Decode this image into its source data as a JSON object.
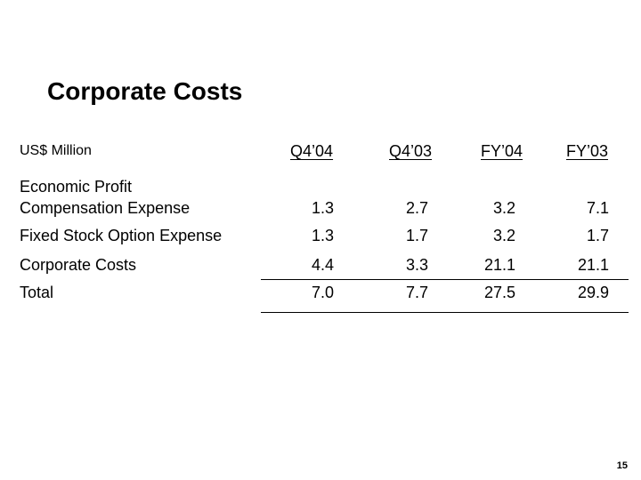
{
  "title": "Corporate Costs",
  "unit_label": "US$ Million",
  "columns": [
    "Q4’04",
    "Q4’03",
    "FY’04",
    "FY’03"
  ],
  "rows": [
    {
      "label_line1": "Economic Profit",
      "label_line2": "Compensation Expense",
      "values": [
        "1.3",
        "2.7",
        "3.2",
        "7.1"
      ]
    },
    {
      "label": "Fixed Stock Option Expense",
      "values": [
        "1.3",
        "1.7",
        "3.2",
        "1.7"
      ]
    },
    {
      "label": "Corporate Costs",
      "values": [
        "4.4",
        "3.3",
        "21.1",
        "21.1"
      ]
    },
    {
      "label": "Total",
      "values": [
        "7.0",
        "7.7",
        "27.5",
        "29.9"
      ]
    }
  ],
  "page_number": "15"
}
